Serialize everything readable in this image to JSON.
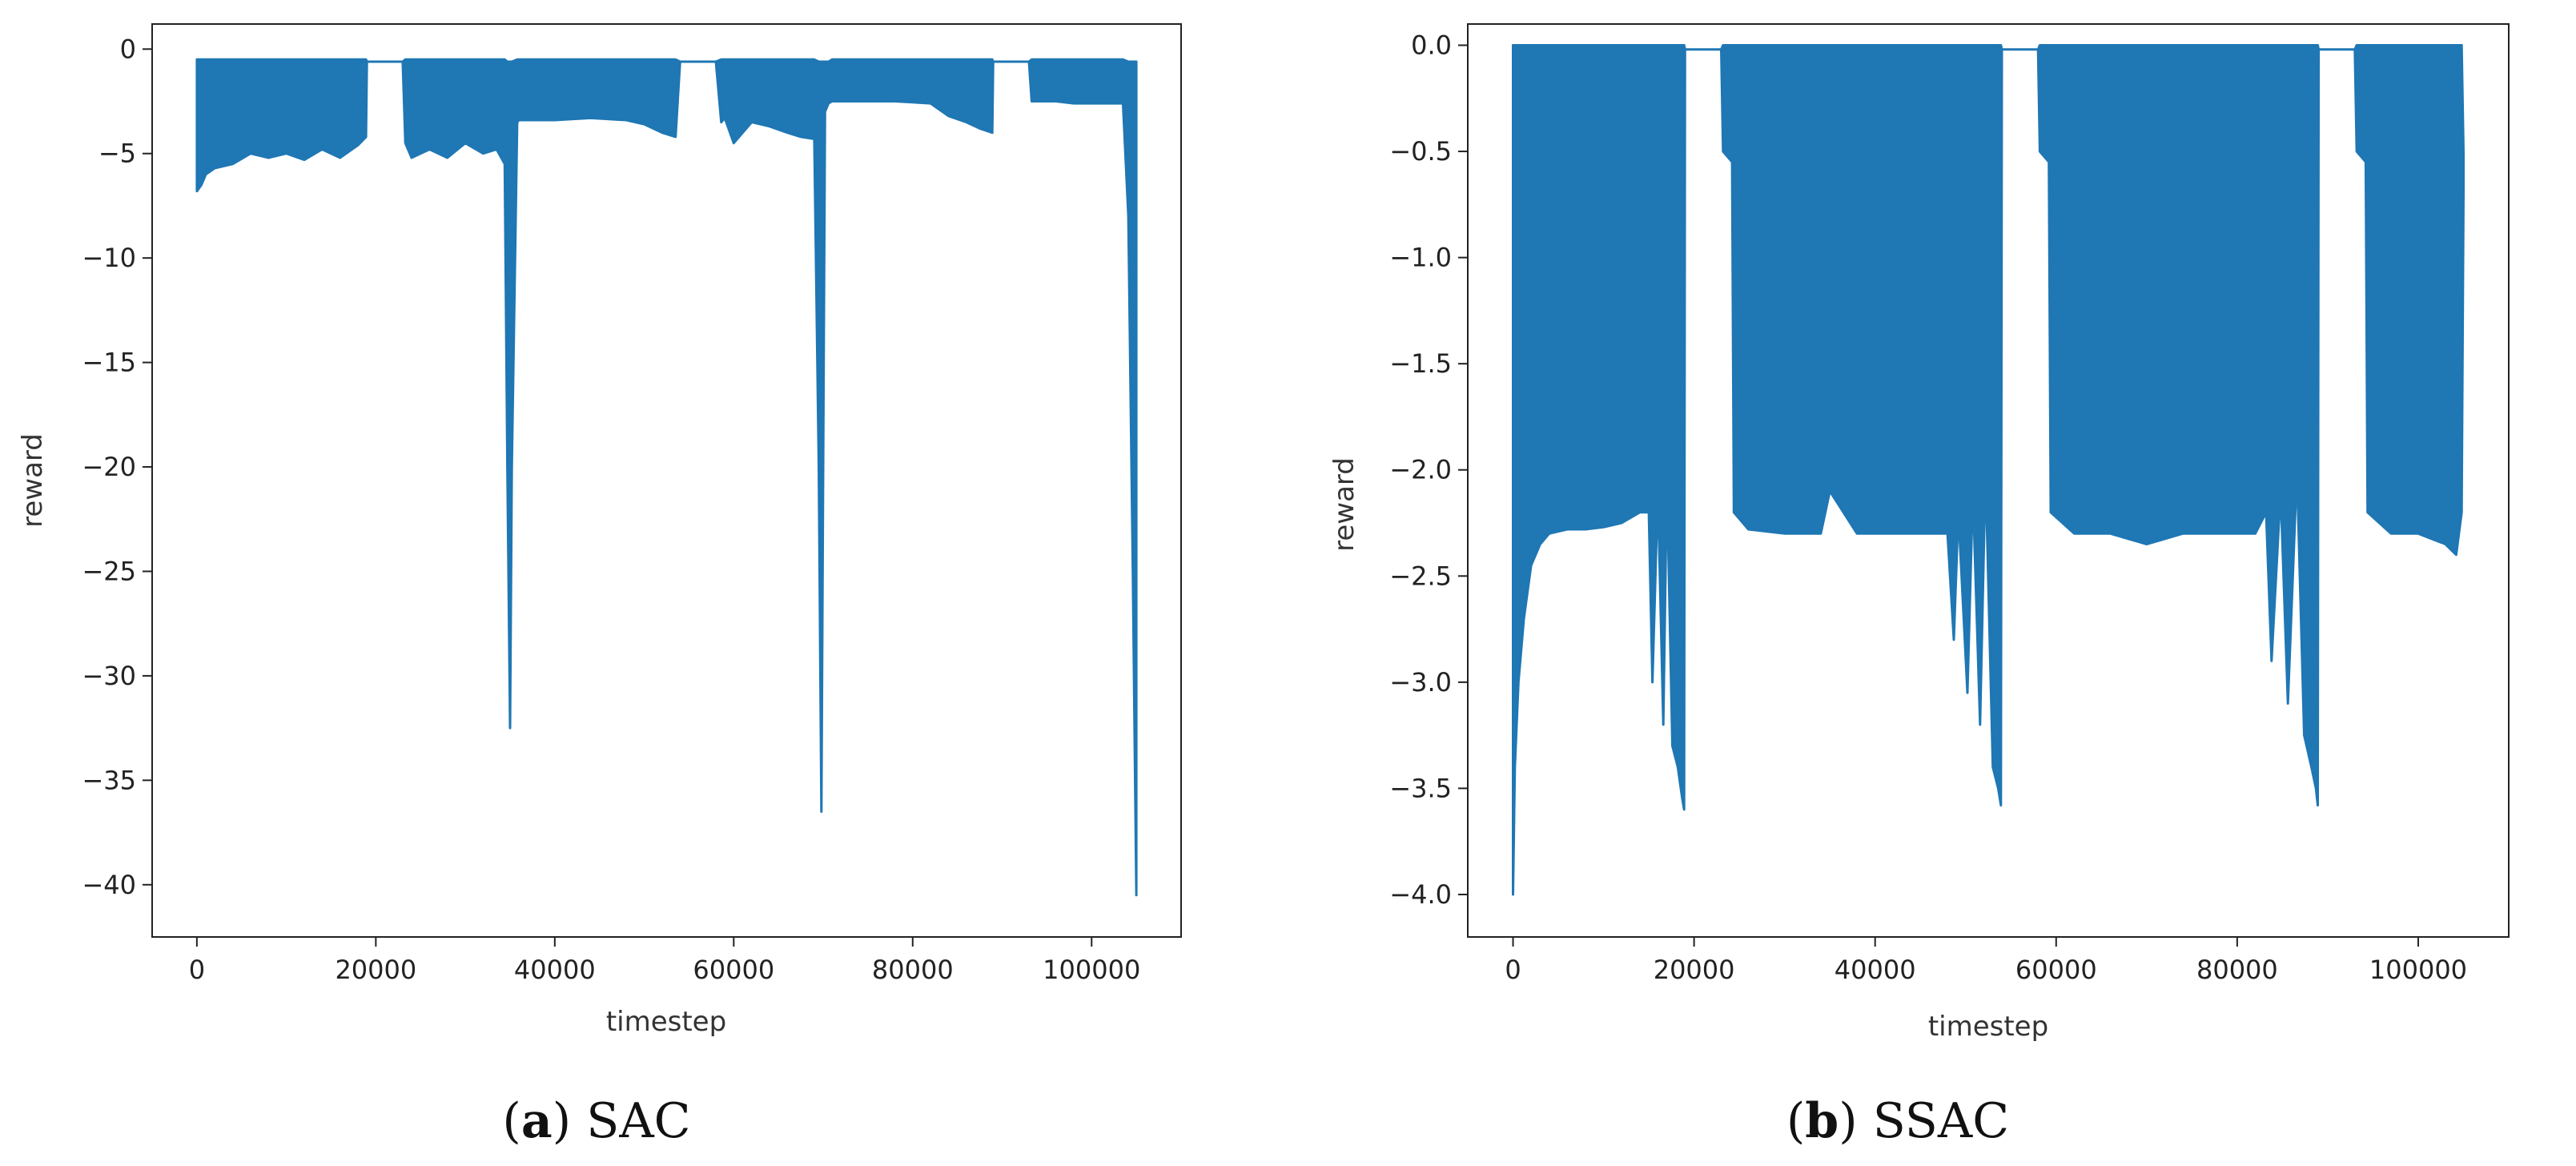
{
  "chart_data": [
    {
      "type": "line",
      "caption_letter": "a",
      "caption_name": "SAC",
      "title": "",
      "xlabel": "timestep",
      "ylabel": "reward",
      "xlim": [
        -5000,
        110000
      ],
      "ylim": [
        -42.5,
        1.2
      ],
      "xticks": [
        0,
        20000,
        40000,
        60000,
        80000,
        100000
      ],
      "xtick_labels": [
        "0",
        "20000",
        "40000",
        "60000",
        "80000",
        "100000"
      ],
      "yticks": [
        0,
        -5,
        -10,
        -15,
        -20,
        -25,
        -30,
        -35,
        -40
      ],
      "ytick_labels": [
        "0",
        "−5",
        "−10",
        "−15",
        "−20",
        "−25",
        "−30",
        "−35",
        "−40"
      ],
      "grid": false,
      "line_color": "#1f77b4",
      "series": [
        {
          "x": [
            0,
            500,
            1000,
            2000,
            4000,
            6000,
            8000,
            10000,
            12000,
            14000,
            16000,
            18000,
            18900,
            19000,
            23000,
            23300,
            24000,
            26000,
            28000,
            30000,
            32000,
            33500,
            34400,
            34700,
            35000,
            35200,
            35800,
            36000,
            40000,
            44000,
            48000,
            50000,
            52000,
            53500,
            54000,
            58000,
            58600,
            59000,
            60000,
            62000,
            64000,
            66000,
            67500,
            69000,
            69500,
            69800,
            70200,
            70600,
            71000,
            74000,
            78000,
            82000,
            84000,
            86000,
            87500,
            88900,
            89000,
            93000,
            93300,
            94000,
            96000,
            98000,
            100000,
            102000,
            103500,
            104100,
            104600,
            105000
          ],
          "top": [
            -0.5,
            -0.5,
            -0.5,
            -0.5,
            -0.5,
            -0.5,
            -0.5,
            -0.5,
            -0.5,
            -0.5,
            -0.5,
            -0.5,
            -0.5,
            -0.6,
            -0.6,
            -0.5,
            -0.5,
            -0.5,
            -0.5,
            -0.5,
            -0.5,
            -0.5,
            -0.5,
            -0.6,
            -0.6,
            -0.6,
            -0.5,
            -0.5,
            -0.5,
            -0.5,
            -0.5,
            -0.5,
            -0.5,
            -0.5,
            -0.6,
            -0.6,
            -0.5,
            -0.5,
            -0.5,
            -0.5,
            -0.5,
            -0.5,
            -0.5,
            -0.5,
            -0.6,
            -0.6,
            -0.6,
            -0.6,
            -0.5,
            -0.5,
            -0.5,
            -0.5,
            -0.5,
            -0.5,
            -0.5,
            -0.5,
            -0.6,
            -0.6,
            -0.5,
            -0.5,
            -0.5,
            -0.5,
            -0.5,
            -0.5,
            -0.5,
            -0.6,
            -0.6,
            -0.6
          ],
          "bottom": [
            -6.8,
            -6.5,
            -6.0,
            -5.7,
            -5.5,
            -5.0,
            -5.2,
            -5.0,
            -5.3,
            -4.8,
            -5.2,
            -4.6,
            -4.2,
            -0.6,
            -0.6,
            -4.5,
            -5.2,
            -4.8,
            -5.2,
            -4.5,
            -5.0,
            -4.8,
            -5.5,
            -20.0,
            -32.5,
            -20.0,
            -3.5,
            -3.4,
            -3.4,
            -3.3,
            -3.4,
            -3.6,
            -4.0,
            -4.2,
            -0.6,
            -0.6,
            -3.5,
            -3.3,
            -4.5,
            -3.5,
            -3.7,
            -4.0,
            -4.2,
            -4.3,
            -20.0,
            -36.5,
            -3.0,
            -2.6,
            -2.5,
            -2.5,
            -2.5,
            -2.6,
            -3.2,
            -3.5,
            -3.8,
            -4.0,
            -0.6,
            -0.6,
            -2.5,
            -2.5,
            -2.5,
            -2.6,
            -2.6,
            -2.6,
            -2.6,
            -8.0,
            -25.0,
            -40.5
          ]
        }
      ]
    },
    {
      "type": "line",
      "caption_letter": "b",
      "caption_name": "SSAC",
      "title": "",
      "xlabel": "timestep",
      "ylabel": "reward",
      "xlim": [
        -5000,
        110000
      ],
      "ylim": [
        -4.2,
        0.1
      ],
      "xticks": [
        0,
        20000,
        40000,
        60000,
        80000,
        100000
      ],
      "xtick_labels": [
        "0",
        "20000",
        "40000",
        "60000",
        "80000",
        "100000"
      ],
      "yticks": [
        0.0,
        -0.5,
        -1.0,
        -1.5,
        -2.0,
        -2.5,
        -3.0,
        -3.5,
        -4.0
      ],
      "ytick_labels": [
        "0.0",
        "−0.5",
        "−1.0",
        "−1.5",
        "−2.0",
        "−2.5",
        "−3.0",
        "−3.5",
        "−4.0"
      ],
      "grid": false,
      "line_color": "#1f77b4",
      "series": [
        {
          "x": [
            0,
            200,
            600,
            1200,
            2000,
            3000,
            4000,
            6000,
            8000,
            10000,
            12000,
            14000,
            15000,
            15400,
            16000,
            16600,
            17000,
            17600,
            18200,
            18700,
            18900,
            19000,
            23000,
            23200,
            24200,
            24400,
            26000,
            30000,
            34000,
            35000,
            38000,
            42000,
            46000,
            48000,
            48700,
            49200,
            50200,
            50800,
            51600,
            52200,
            53000,
            53600,
            53900,
            54000,
            58000,
            58200,
            59200,
            59400,
            62000,
            66000,
            70000,
            74000,
            78000,
            82000,
            83200,
            83800,
            84800,
            85600,
            86600,
            87400,
            88200,
            88700,
            88900,
            89000,
            93000,
            93200,
            94200,
            94400,
            97000,
            100000,
            103000,
            104200,
            104800,
            105000
          ],
          "top": [
            0.0,
            0.0,
            0.0,
            0.0,
            0.0,
            0.0,
            0.0,
            0.0,
            0.0,
            0.0,
            0.0,
            0.0,
            0.0,
            0.0,
            0.0,
            0.0,
            0.0,
            0.0,
            0.0,
            0.0,
            0.0,
            -0.02,
            -0.02,
            0.0,
            0.0,
            0.0,
            0.0,
            0.0,
            0.0,
            0.0,
            0.0,
            0.0,
            0.0,
            0.0,
            0.0,
            0.0,
            0.0,
            0.0,
            0.0,
            0.0,
            0.0,
            0.0,
            0.0,
            -0.02,
            -0.02,
            0.0,
            0.0,
            0.0,
            0.0,
            0.0,
            0.0,
            0.0,
            0.0,
            0.0,
            0.0,
            0.0,
            0.0,
            0.0,
            0.0,
            0.0,
            0.0,
            0.0,
            0.0,
            -0.02,
            -0.02,
            0.0,
            0.0,
            0.0,
            0.0,
            0.0,
            0.0,
            0.0,
            0.0,
            -0.5
          ],
          "bottom": [
            -4.0,
            -3.4,
            -3.0,
            -2.7,
            -2.45,
            -2.35,
            -2.3,
            -2.28,
            -2.28,
            -2.27,
            -2.25,
            -2.2,
            -2.2,
            -3.0,
            -2.1,
            -3.2,
            -2.05,
            -3.3,
            -3.4,
            -3.55,
            -3.6,
            -0.02,
            -0.02,
            -0.5,
            -0.55,
            -2.2,
            -2.28,
            -2.3,
            -2.3,
            -2.1,
            -2.3,
            -2.3,
            -2.3,
            -2.3,
            -2.8,
            -2.2,
            -3.05,
            -2.1,
            -3.2,
            -2.0,
            -3.4,
            -3.5,
            -3.58,
            -0.02,
            -0.02,
            -0.5,
            -0.55,
            -2.2,
            -2.3,
            -2.3,
            -2.35,
            -2.3,
            -2.3,
            -2.3,
            -2.2,
            -2.9,
            -2.1,
            -3.1,
            -2.0,
            -3.25,
            -3.4,
            -3.5,
            -3.58,
            -0.02,
            -0.02,
            -0.5,
            -0.55,
            -2.2,
            -2.3,
            -2.3,
            -2.35,
            -2.4,
            -2.2,
            -0.7
          ]
        }
      ]
    }
  ]
}
